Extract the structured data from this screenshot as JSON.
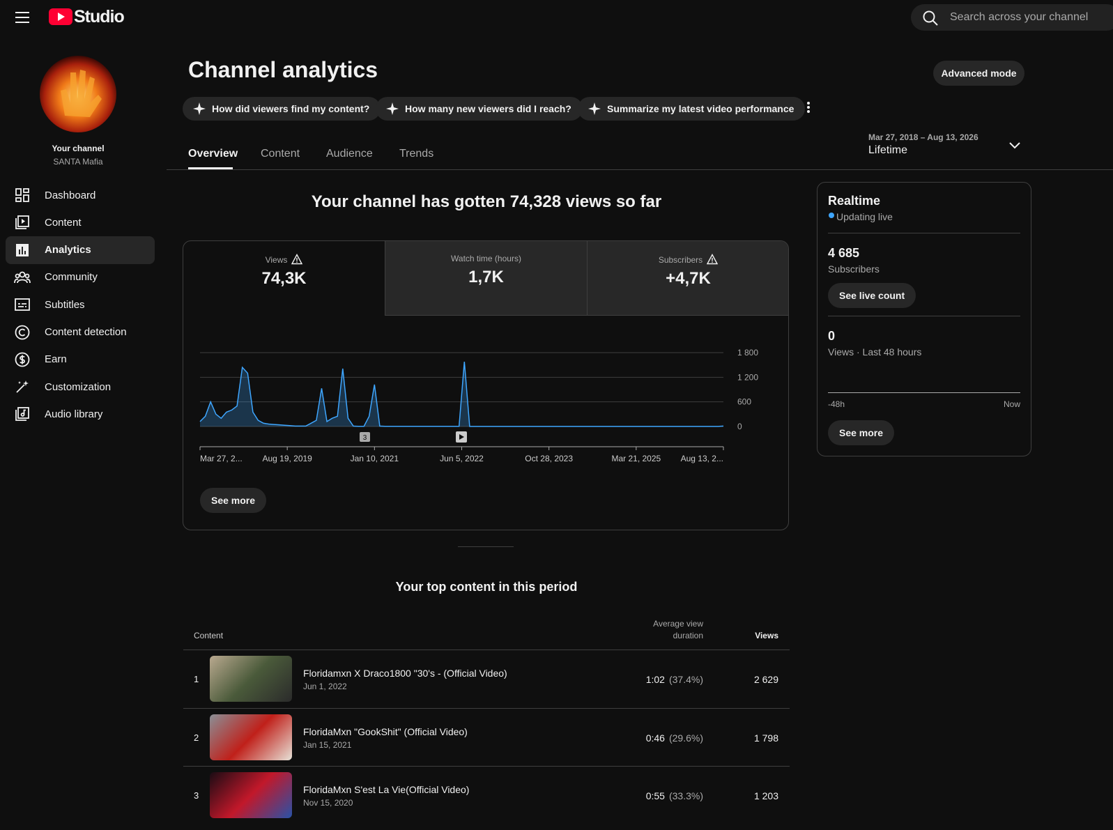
{
  "header": {
    "logo": "Studio",
    "search": "Search across your channel"
  },
  "sidebar": {
    "channel_label": "Your channel",
    "channel_name": "SANTA Mafia",
    "nav": [
      "Dashboard",
      "Content",
      "Analytics",
      "Community",
      "Subtitles",
      "Content detection",
      "Earn",
      "Customization",
      "Audio library"
    ]
  },
  "page": {
    "title": "Channel analytics",
    "advanced": "Advanced mode",
    "prompts": [
      "How did viewers find my content?",
      "How many new viewers did I reach?",
      "Summarize my latest video performance"
    ],
    "tabs": [
      "Overview",
      "Content",
      "Audience",
      "Trends"
    ],
    "date_range": "Mar 27, 2018 – Aug 13, 2026",
    "period": "Lifetime"
  },
  "overview": {
    "headline": "Your channel has gotten 74,328 views so far",
    "metrics": [
      {
        "label": "Views",
        "value": "74,3K"
      },
      {
        "label": "Watch time (hours)",
        "value": "1,7K"
      },
      {
        "label": "Subscribers",
        "value": "+4,7K"
      }
    ],
    "see_more": "See more"
  },
  "chart": {
    "type": "line",
    "color": "#3ea6ff",
    "ylim": [
      0,
      1800
    ],
    "yticks": [
      0,
      600,
      {
        "value": 1200,
        "label": "1 200"
      },
      {
        "value": 1800,
        "label": "1 800"
      }
    ],
    "xtick_labels": [
      "Mar 27, 2...",
      "Aug 19, 2019",
      "Jan 10, 2021",
      "Jun 5, 2022",
      "Oct 28, 2023",
      "Mar 21, 2025",
      "Aug 13, 2..."
    ],
    "marker": "3",
    "values": [
      120,
      250,
      600,
      300,
      200,
      350,
      400,
      500,
      1440,
      1300,
      350,
      150,
      80,
      60,
      50,
      40,
      30,
      20,
      10,
      10,
      10,
      80,
      150,
      930,
      120,
      200,
      250,
      1410,
      200,
      10,
      5,
      5,
      250,
      1020,
      10,
      5,
      5,
      5,
      5,
      5,
      5,
      5,
      5,
      5,
      5,
      5,
      5,
      5,
      5,
      5,
      1580,
      2,
      2,
      2,
      2,
      2,
      2,
      2,
      2,
      2,
      2,
      2,
      2,
      2,
      2,
      2,
      2,
      2,
      2,
      2,
      2,
      2,
      2,
      2,
      2,
      2,
      2,
      2,
      2,
      2,
      2,
      2,
      2,
      2,
      2,
      2,
      2,
      2,
      2,
      2,
      2,
      2,
      2,
      2,
      2,
      2,
      2,
      2,
      2,
      10
    ]
  },
  "top_content": {
    "title": "Your top content in this period",
    "columns": [
      "Content",
      "Average view duration",
      "Views"
    ],
    "rows": [
      {
        "rank": 1,
        "title": "Floridamxn X Draco1800 \"30's - (Official Video)",
        "date": "Jun 1, 2022",
        "duration": "1:02",
        "percent": "(37.4%)",
        "views": "2 629"
      },
      {
        "rank": 2,
        "title": "FloridaMxn \"GookShit\" (Official Video)",
        "date": "Jan 15, 2021",
        "duration": "0:46",
        "percent": "(29.6%)",
        "views": "1 798"
      },
      {
        "rank": 3,
        "title": "FloridaMxn S'est La Vie(Official Video)",
        "date": "Nov 15, 2020",
        "duration": "0:55",
        "percent": "(33.3%)",
        "views": "1 203"
      }
    ]
  },
  "realtime": {
    "title": "Realtime",
    "status": "Updating live",
    "subscribers": "4 685",
    "subscribers_label": "Subscribers",
    "live_count": "See live count",
    "views": "0",
    "views_label": "Views · Last 48 hours",
    "axis_start": "-48h",
    "axis_end": "Now",
    "see_more": "See more"
  }
}
